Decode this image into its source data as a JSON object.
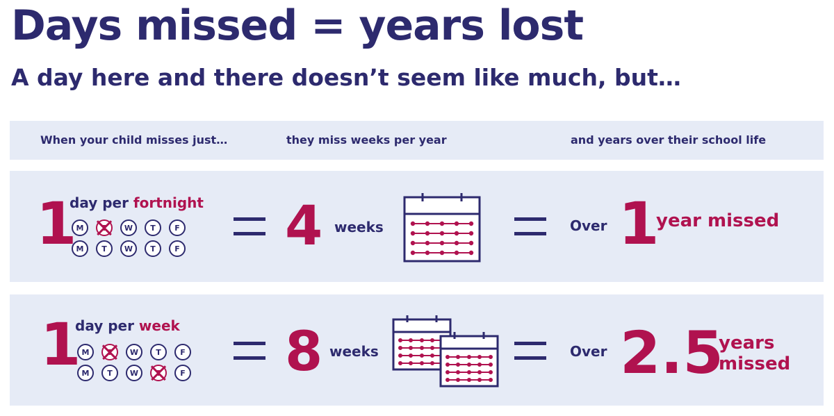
{
  "title": "Days missed = years lost",
  "subtitle": "A day here and there doesn’t seem like much, but…",
  "header": {
    "col1": "When your child misses just…",
    "col2": "they miss weeks per year",
    "col3": "and years over their school life"
  },
  "rows": [
    {
      "count": "1",
      "freq_prefix": "day per ",
      "freq_accent": "fortnight",
      "week1": [
        "M",
        "T",
        "W",
        "T",
        "F"
      ],
      "week1_missed": [
        false,
        true,
        false,
        false,
        false
      ],
      "week2": [
        "M",
        "T",
        "W",
        "T",
        "F"
      ],
      "week2_missed": [
        false,
        false,
        false,
        false,
        false
      ],
      "weeks_value": "4",
      "weeks_label": "weeks",
      "over_label": "Over",
      "years_value": "1",
      "years_label": "year missed",
      "calendar_icon": "calendar-icon"
    },
    {
      "count": "1",
      "freq_prefix": "day per ",
      "freq_accent": "week",
      "week1": [
        "M",
        "T",
        "W",
        "T",
        "F"
      ],
      "week1_missed": [
        false,
        true,
        false,
        false,
        false
      ],
      "week2": [
        "M",
        "T",
        "W",
        "T",
        "F"
      ],
      "week2_missed": [
        false,
        false,
        false,
        true,
        false
      ],
      "weeks_value": "8",
      "weeks_label": "weeks",
      "over_label": "Over",
      "years_value": "2.5",
      "years_label_line1": "years",
      "years_label_line2": "missed",
      "calendar_icon": "two-calendars-icon"
    }
  ],
  "colors": {
    "navy": "#2d2a6e",
    "accent": "#b0124f",
    "band": "#e6ebf6"
  }
}
